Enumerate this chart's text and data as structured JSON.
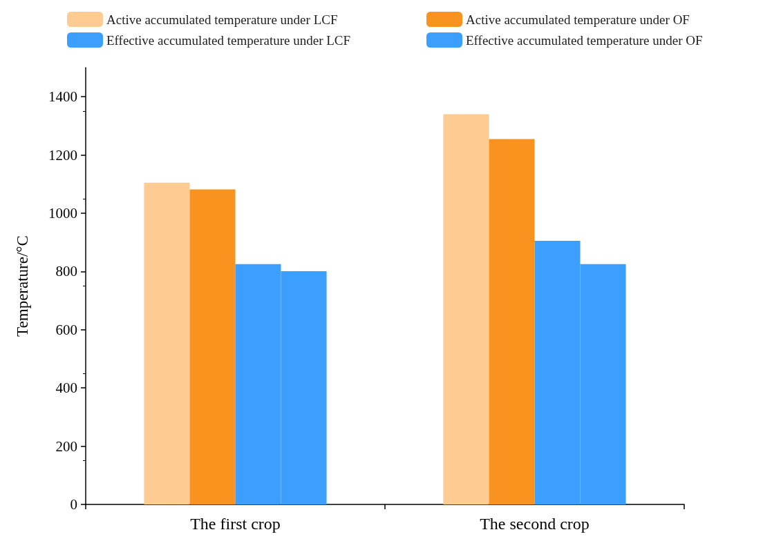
{
  "chart_data": {
    "type": "bar",
    "ylabel": "Temperature/°C",
    "categories": [
      "The first crop",
      "The second crop"
    ],
    "series": [
      {
        "name": "Active accumulated temperature under LCF",
        "color": "#fecb92",
        "values": [
          1105,
          1340
        ]
      },
      {
        "name": "Active accumulated temperature under OF",
        "color": "#f7931e",
        "values": [
          1082,
          1255
        ]
      },
      {
        "name": "Effective accumulated temperature under LCF",
        "color": "#3c9ffe",
        "values": [
          825,
          905
        ]
      },
      {
        "name": "Effective accumulated temperature under OF",
        "color": "#3c9ffe",
        "values": [
          801,
          825
        ]
      }
    ],
    "ylim": [
      0,
      1500
    ],
    "yticks": [
      0,
      200,
      400,
      600,
      800,
      1000,
      1200,
      1400
    ],
    "grid": false,
    "legend": "top"
  }
}
